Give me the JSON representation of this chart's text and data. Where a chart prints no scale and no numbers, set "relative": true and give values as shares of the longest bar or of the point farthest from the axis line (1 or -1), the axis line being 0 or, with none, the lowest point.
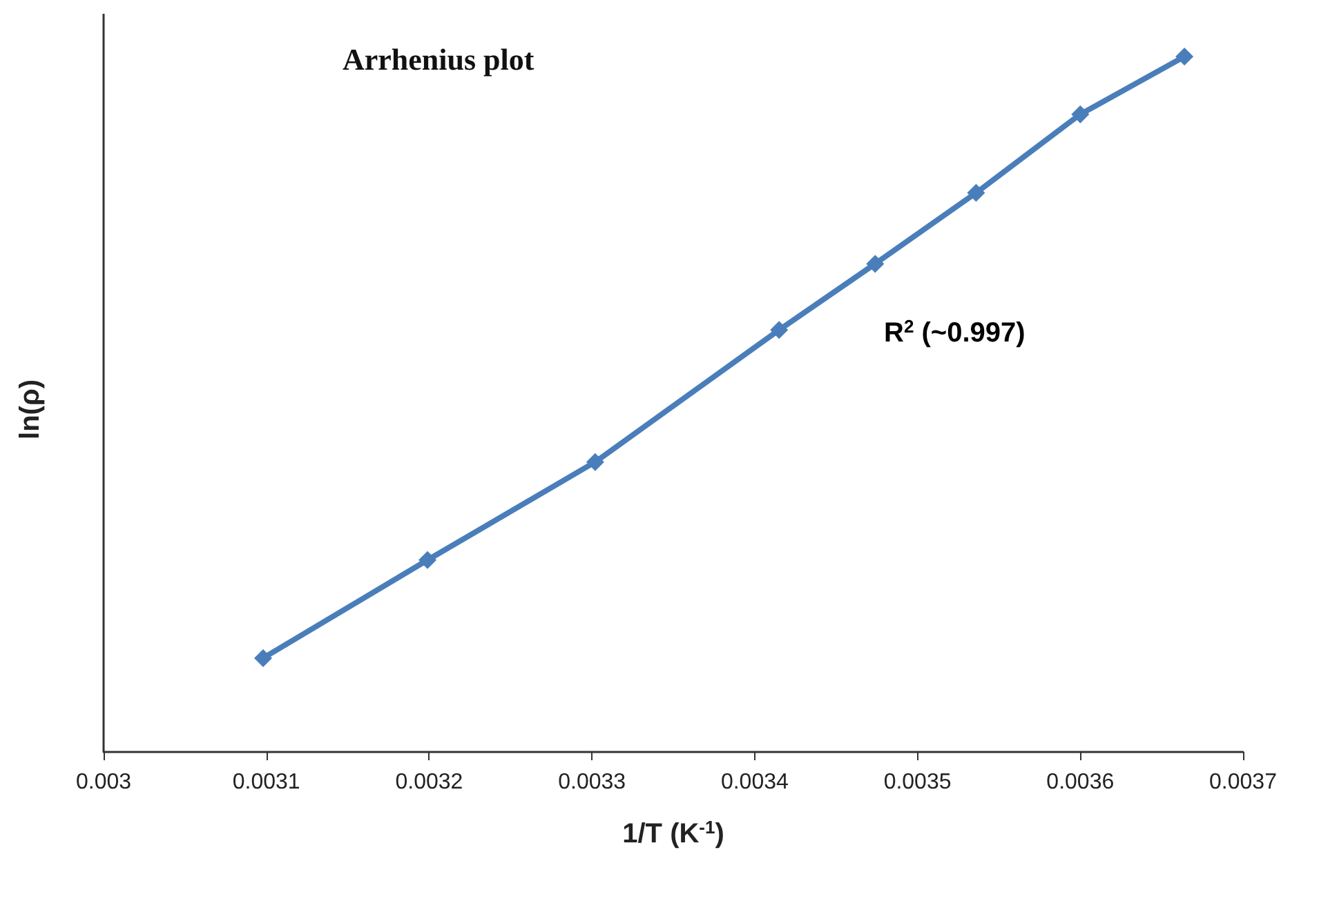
{
  "chart_data": {
    "type": "line",
    "title": "Arrhenius plot",
    "xlabel": "1/T (K$^{-1}$)",
    "ylabel": "ln(ρ)",
    "annotations": [
      "R$^{2}$ (~0.997)"
    ],
    "x": [
      0.003098,
      0.003199,
      0.003302,
      0.003415,
      0.003474,
      0.003536,
      0.0036,
      0.003664
    ],
    "series": [
      {
        "color": "#4a7ebb",
        "values": [
          0.135,
          0.276,
          0.417,
          0.607,
          0.702,
          0.804,
          0.917,
          1
        ]
      }
    ],
    "relative": true,
    "xlim": [
      0.003,
      0.0037
    ],
    "xticks": [
      0.003,
      0.0031,
      0.0032,
      0.0033,
      0.0034,
      0.0035,
      0.0036,
      0.0037
    ],
    "grid": false,
    "marker": "diamond",
    "line_style": "solid"
  }
}
